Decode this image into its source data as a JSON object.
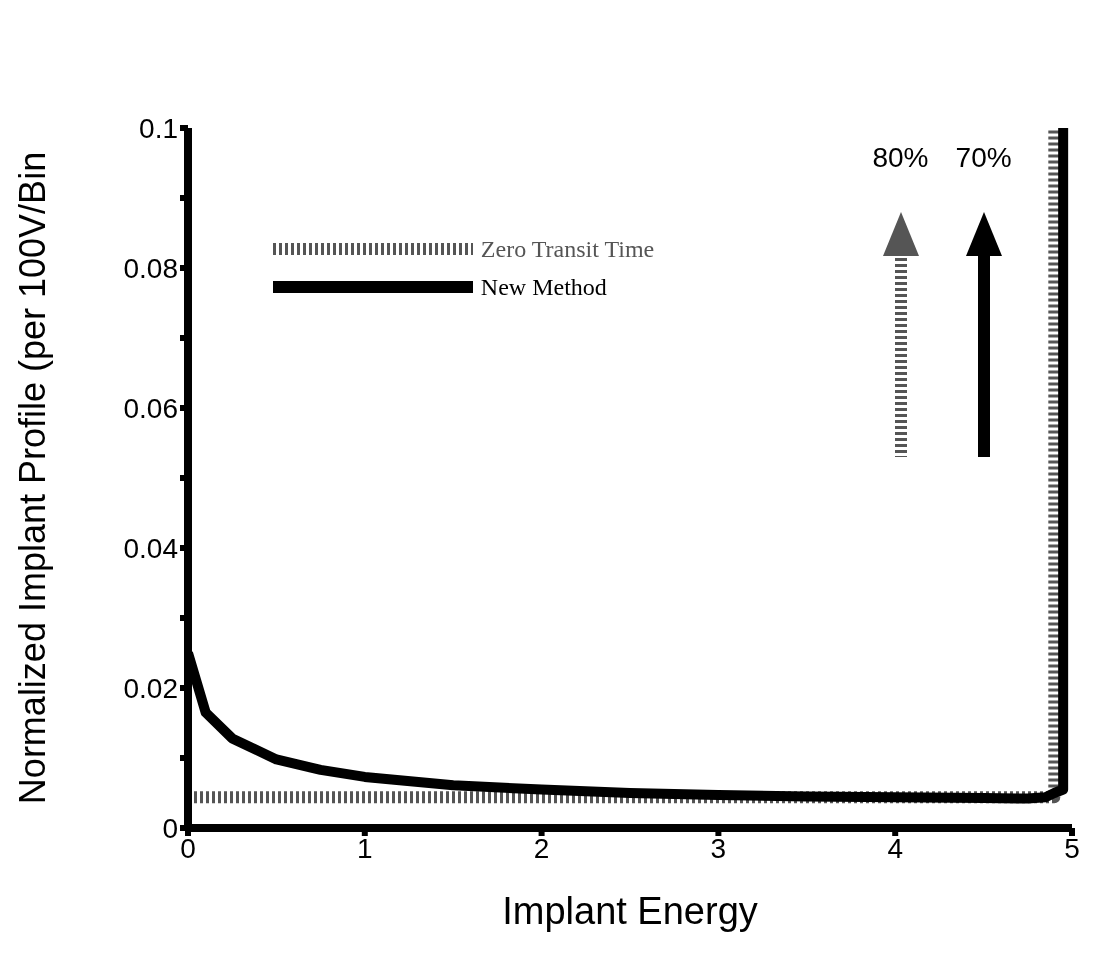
{
  "chart_data": {
    "type": "line",
    "xlabel": "Implant Energy",
    "ylabel": "Normalized Implant Profile (per 100V/Bin",
    "xlim": [
      0,
      5
    ],
    "ylim": [
      0,
      0.1
    ],
    "xticks": [
      0,
      1,
      2,
      3,
      4,
      5
    ],
    "yticks": [
      0,
      {
        "value": 0.01,
        "label": null
      },
      0.02,
      {
        "value": 0.03,
        "label": null
      },
      0.04,
      {
        "value": 0.05,
        "label": null
      },
      0.06,
      {
        "value": 0.07,
        "label": null
      },
      0.08,
      {
        "value": 0.09,
        "label": null
      },
      0.1
    ],
    "grid": false,
    "legend": "top left",
    "marker": "none",
    "series": [
      {
        "name": "Zero Transit Time",
        "color": "#555555",
        "line_style": "dashed",
        "x": [
          0,
          1,
          2,
          3,
          4,
          4.85,
          4.9,
          4.9
        ],
        "values": [
          0.0044,
          0.0044,
          0.0044,
          0.0044,
          0.0044,
          0.0044,
          0.0044,
          0.1
        ]
      },
      {
        "name": "New Method",
        "color": "#000000",
        "line_style": "solid",
        "x": [
          0,
          0.1,
          0.25,
          0.5,
          0.75,
          1,
          1.5,
          2,
          2.5,
          3,
          3.5,
          4,
          4.5,
          4.75,
          4.85,
          4.9,
          4.95,
          4.95
        ],
        "values": [
          0.025,
          0.0165,
          0.0128,
          0.0098,
          0.0083,
          0.0073,
          0.0061,
          0.0055,
          0.005,
          0.0047,
          0.0045,
          0.0044,
          0.0043,
          0.0042,
          0.0044,
          0.005,
          0.0055,
          0.1
        ]
      }
    ],
    "annotations": [
      "80%",
      "70%"
    ]
  }
}
